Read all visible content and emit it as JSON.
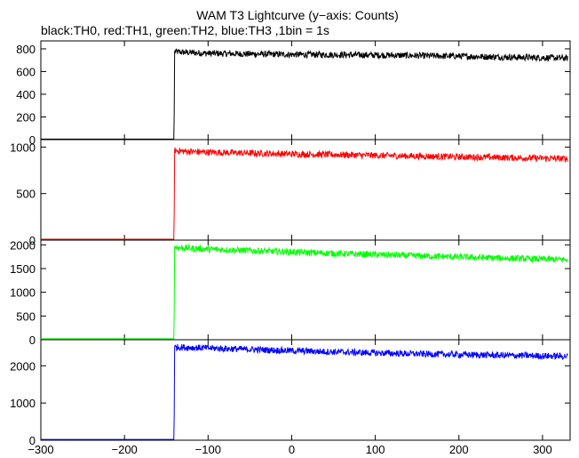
{
  "chart_data": {
    "type": "line",
    "title": "WAM T3 Lightcurve (y−axis: Counts)",
    "subtitle": "black:TH0, red:TH1, green:TH2, blue:TH3 ,1bin = 1s",
    "xlabel": "",
    "xlim": [
      -300,
      333
    ],
    "x_ticks": [
      -300,
      -200,
      -100,
      0,
      100,
      200,
      300
    ],
    "x_tick_labels": [
      "−300",
      "−200",
      "−100",
      "0",
      "100",
      "200",
      "300"
    ],
    "grid": false,
    "panels": [
      {
        "series": "TH0",
        "color": "#000000",
        "ylim": [
          0,
          870
        ],
        "y_ticks": [
          0,
          200,
          400,
          600,
          800
        ],
        "y_tick_labels": [
          "0",
          "200",
          "400",
          "600",
          "800"
        ],
        "x": [
          -300,
          -141,
          -140.5,
          -140,
          -130,
          -100,
          -50,
          0,
          50,
          100,
          150,
          200,
          250,
          300,
          330
        ],
        "y": [
          5,
          5,
          230,
          775,
          770,
          760,
          755,
          750,
          748,
          745,
          740,
          735,
          728,
          722,
          718
        ]
      },
      {
        "series": "TH1",
        "color": "#ff0000",
        "ylim": [
          0,
          1080
        ],
        "y_ticks": [
          0,
          500,
          1000
        ],
        "y_tick_labels": [
          "0",
          "500",
          "1000"
        ],
        "x": [
          -300,
          -141,
          -140.5,
          -140,
          -130,
          -100,
          -50,
          0,
          50,
          100,
          150,
          200,
          250,
          300,
          330
        ],
        "y": [
          10,
          10,
          300,
          965,
          955,
          945,
          935,
          925,
          918,
          910,
          902,
          895,
          888,
          880,
          875
        ]
      },
      {
        "series": "TH2",
        "color": "#00ff00",
        "ylim": [
          0,
          2100
        ],
        "y_ticks": [
          0,
          500,
          1000,
          1500,
          2000
        ],
        "y_tick_labels": [
          "0",
          "500",
          "1000",
          "1500",
          "2000"
        ],
        "x": [
          -300,
          -141,
          -140.5,
          -140,
          -130,
          -100,
          -50,
          0,
          50,
          100,
          150,
          200,
          250,
          300,
          330
        ],
        "y": [
          20,
          20,
          600,
          1950,
          1935,
          1910,
          1880,
          1850,
          1820,
          1795,
          1770,
          1745,
          1720,
          1700,
          1690
        ]
      },
      {
        "series": "TH3",
        "color": "#0000ff",
        "ylim": [
          0,
          2700
        ],
        "y_ticks": [
          0,
          1000,
          2000
        ],
        "y_tick_labels": [
          "0",
          "1000",
          "2000"
        ],
        "x": [
          -300,
          -141,
          -140.5,
          -140,
          -130,
          -100,
          -50,
          0,
          50,
          100,
          150,
          200,
          250,
          300,
          330
        ],
        "y": [
          20,
          20,
          650,
          2500,
          2495,
          2475,
          2440,
          2405,
          2375,
          2345,
          2320,
          2300,
          2280,
          2265,
          2255
        ]
      }
    ]
  }
}
